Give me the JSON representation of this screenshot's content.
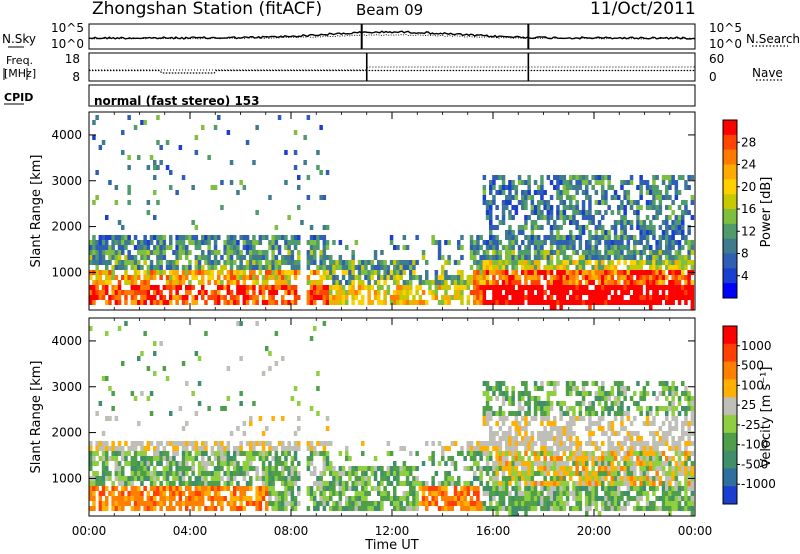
{
  "header": {
    "station": "Zhongshan Station (fitACF)",
    "beam": "Beam 09",
    "date": "11/Oct/2011"
  },
  "noise_panel": {
    "left_label": "N.Sky",
    "right_label": "N.Search",
    "y_ticks_left": [
      "10^5",
      "10^0"
    ],
    "y_ticks_right": [
      "10^5",
      "10^0"
    ]
  },
  "freq_panel": {
    "left_label": "Freq.",
    "left_unit": "[MHz]",
    "right_label": "Nave",
    "y_ticks_left": [
      "18",
      "8"
    ],
    "y_ticks_right": [
      "60",
      "0"
    ]
  },
  "cpid_panel": {
    "left_label": "CPID",
    "text": "normal (fast stereo) 153"
  },
  "chart_data": [
    {
      "type": "heatmap",
      "quantity": "Power",
      "ylabel": "Slant Range [km]",
      "ylim": [
        180,
        4500
      ],
      "yticks": [
        "1000",
        "2000",
        "3000",
        "4000"
      ],
      "xlim": [
        "00:00",
        "24:00"
      ],
      "colorbar": {
        "label": "Power [dB]",
        "ticks": [
          "4",
          "8",
          "12",
          "16",
          "20",
          "24",
          "28"
        ],
        "colors": [
          "#0000ff",
          "#1a3fd0",
          "#2f5fb4",
          "#3f7a8f",
          "#4f9c6a",
          "#7fbf40",
          "#c8c800",
          "#ffd000",
          "#ffaa00",
          "#ff7b00",
          "#ff4400",
          "#ff0000"
        ]
      }
    },
    {
      "type": "heatmap",
      "quantity": "Velocity",
      "ylabel": "Slant Range [km]",
      "ylim": [
        180,
        4500
      ],
      "yticks": [
        "1000",
        "2000",
        "3000",
        "4000"
      ],
      "xlim": [
        "00:00",
        "24:00"
      ],
      "colorbar": {
        "label": "Velocity [m s⁻¹]",
        "ticks": [
          "1000",
          "500",
          "100",
          "25",
          "-25",
          "-100",
          "-500",
          "-1000"
        ],
        "colors": [
          "#1a3fd0",
          "#2f6fa0",
          "#3f8f6a",
          "#4f9f4a",
          "#8fcf3f",
          "#bfbfb8",
          "#ffb000",
          "#ff8000",
          "#ff4000",
          "#ff0000"
        ]
      }
    }
  ],
  "x_axis": {
    "ticks": [
      "00:00",
      "04:00",
      "08:00",
      "12:00",
      "16:00",
      "20:00",
      "00:00"
    ],
    "label": "Time UT"
  }
}
